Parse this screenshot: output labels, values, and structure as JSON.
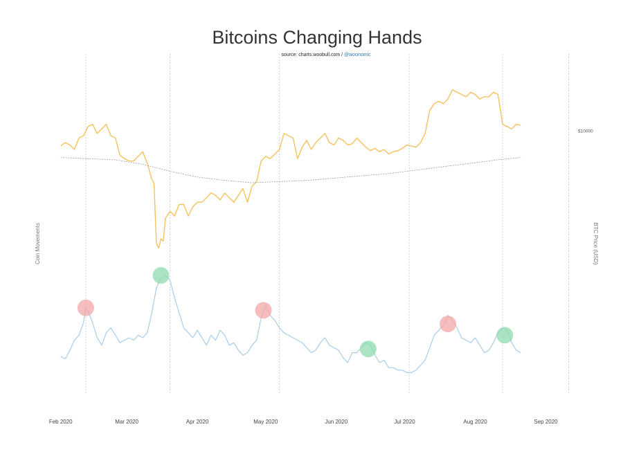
{
  "chart_data": {
    "type": "line",
    "title": "Bitcoins Changing Hands",
    "source_prefix": "source: charts.woobull.com / ",
    "source_handle": "@woonomic",
    "ylabel_left": "Coin Movements",
    "ylabel_right": "BTC Price (USD)",
    "price_tick_label": "$10000",
    "x_ticks": [
      "Feb 2020",
      "Mar 2020",
      "Apr 2020",
      "May 2020",
      "Jun 2020",
      "Jul 2020",
      "Aug 2020",
      "Sep 2020"
    ],
    "x_range": [
      -6,
      225
    ],
    "price_range": [
      4400,
      12400
    ],
    "price_tick_value": 10000,
    "movement_range": [
      0,
      100
    ],
    "event_days": [
      11,
      48,
      96,
      153,
      194,
      223
    ],
    "colors": {
      "price": "#f5c25d",
      "price_ma": "#999999",
      "movement": "#a8cdea",
      "sell_marker": "#f4a6a6",
      "buy_marker": "#8fdbae",
      "event_line": "#c8c8c8"
    },
    "series": [
      {
        "name": "BTC Price",
        "points": [
          [
            0,
            9350
          ],
          [
            2,
            9500
          ],
          [
            4,
            9400
          ],
          [
            6,
            9200
          ],
          [
            8,
            9700
          ],
          [
            10,
            9800
          ],
          [
            12,
            10200
          ],
          [
            14,
            10300
          ],
          [
            16,
            9900
          ],
          [
            18,
            10100
          ],
          [
            20,
            10300
          ],
          [
            22,
            9800
          ],
          [
            24,
            9700
          ],
          [
            26,
            8950
          ],
          [
            28,
            8800
          ],
          [
            30,
            8700
          ],
          [
            32,
            8700
          ],
          [
            34,
            8900
          ],
          [
            36,
            9100
          ],
          [
            38,
            8600
          ],
          [
            40,
            7900
          ],
          [
            41,
            7700
          ],
          [
            42,
            5100
          ],
          [
            43,
            4900
          ],
          [
            44,
            5300
          ],
          [
            45,
            5200
          ],
          [
            46,
            6200
          ],
          [
            48,
            6500
          ],
          [
            50,
            6300
          ],
          [
            52,
            6800
          ],
          [
            54,
            6800
          ],
          [
            56,
            6300
          ],
          [
            58,
            6700
          ],
          [
            60,
            6900
          ],
          [
            62,
            6900
          ],
          [
            64,
            7100
          ],
          [
            66,
            7300
          ],
          [
            68,
            7200
          ],
          [
            70,
            7000
          ],
          [
            72,
            7300
          ],
          [
            74,
            7100
          ],
          [
            76,
            6900
          ],
          [
            78,
            7200
          ],
          [
            80,
            7500
          ],
          [
            82,
            6900
          ],
          [
            84,
            7600
          ],
          [
            86,
            7800
          ],
          [
            88,
            8700
          ],
          [
            90,
            8900
          ],
          [
            92,
            8800
          ],
          [
            94,
            9000
          ],
          [
            96,
            9200
          ],
          [
            98,
            9900
          ],
          [
            100,
            9800
          ],
          [
            102,
            9700
          ],
          [
            104,
            8800
          ],
          [
            106,
            9300
          ],
          [
            108,
            9600
          ],
          [
            110,
            9200
          ],
          [
            112,
            9500
          ],
          [
            114,
            9700
          ],
          [
            116,
            9900
          ],
          [
            118,
            9500
          ],
          [
            120,
            9400
          ],
          [
            122,
            9700
          ],
          [
            124,
            9600
          ],
          [
            126,
            9400
          ],
          [
            128,
            9450
          ],
          [
            130,
            9700
          ],
          [
            132,
            9500
          ],
          [
            134,
            9300
          ],
          [
            136,
            9150
          ],
          [
            138,
            9250
          ],
          [
            140,
            9100
          ],
          [
            142,
            9200
          ],
          [
            144,
            9000
          ],
          [
            146,
            9100
          ],
          [
            148,
            9150
          ],
          [
            150,
            9250
          ],
          [
            152,
            9400
          ],
          [
            154,
            9350
          ],
          [
            156,
            9300
          ],
          [
            158,
            9500
          ],
          [
            160,
            9900
          ],
          [
            162,
            10900
          ],
          [
            164,
            11200
          ],
          [
            166,
            11300
          ],
          [
            168,
            11200
          ],
          [
            170,
            11400
          ],
          [
            172,
            11800
          ],
          [
            174,
            11700
          ],
          [
            176,
            11600
          ],
          [
            178,
            11500
          ],
          [
            180,
            11700
          ],
          [
            182,
            11600
          ],
          [
            184,
            11400
          ],
          [
            186,
            11500
          ],
          [
            188,
            11500
          ],
          [
            190,
            11700
          ],
          [
            192,
            11600
          ],
          [
            194,
            10300
          ],
          [
            196,
            10200
          ],
          [
            198,
            10100
          ],
          [
            200,
            10300
          ],
          [
            202,
            10250
          ]
        ]
      },
      {
        "name": "Price MA",
        "points": [
          [
            0,
            8850
          ],
          [
            12,
            8800
          ],
          [
            24,
            8750
          ],
          [
            36,
            8550
          ],
          [
            48,
            8250
          ],
          [
            60,
            8000
          ],
          [
            72,
            7850
          ],
          [
            84,
            7750
          ],
          [
            96,
            7800
          ],
          [
            108,
            7850
          ],
          [
            120,
            7950
          ],
          [
            132,
            8050
          ],
          [
            144,
            8150
          ],
          [
            156,
            8300
          ],
          [
            168,
            8450
          ],
          [
            180,
            8600
          ],
          [
            192,
            8750
          ],
          [
            202,
            8850
          ]
        ]
      },
      {
        "name": "Coin Movements",
        "points": [
          [
            0,
            25
          ],
          [
            2,
            23
          ],
          [
            4,
            30
          ],
          [
            6,
            38
          ],
          [
            8,
            42
          ],
          [
            10,
            52
          ],
          [
            11,
            64
          ],
          [
            12,
            62
          ],
          [
            14,
            52
          ],
          [
            16,
            40
          ],
          [
            18,
            34
          ],
          [
            20,
            44
          ],
          [
            22,
            48
          ],
          [
            24,
            42
          ],
          [
            26,
            36
          ],
          [
            28,
            38
          ],
          [
            30,
            40
          ],
          [
            32,
            38
          ],
          [
            34,
            42
          ],
          [
            36,
            40
          ],
          [
            38,
            44
          ],
          [
            40,
            60
          ],
          [
            42,
            80
          ],
          [
            44,
            88
          ],
          [
            46,
            90
          ],
          [
            48,
            86
          ],
          [
            50,
            72
          ],
          [
            52,
            60
          ],
          [
            54,
            48
          ],
          [
            56,
            44
          ],
          [
            58,
            40
          ],
          [
            60,
            46
          ],
          [
            62,
            40
          ],
          [
            64,
            34
          ],
          [
            66,
            42
          ],
          [
            68,
            38
          ],
          [
            70,
            46
          ],
          [
            72,
            42
          ],
          [
            74,
            34
          ],
          [
            76,
            36
          ],
          [
            78,
            30
          ],
          [
            80,
            26
          ],
          [
            82,
            28
          ],
          [
            84,
            34
          ],
          [
            86,
            38
          ],
          [
            88,
            56
          ],
          [
            90,
            66
          ],
          [
            92,
            58
          ],
          [
            94,
            54
          ],
          [
            96,
            48
          ],
          [
            98,
            44
          ],
          [
            100,
            42
          ],
          [
            102,
            40
          ],
          [
            104,
            38
          ],
          [
            106,
            36
          ],
          [
            108,
            32
          ],
          [
            110,
            28
          ],
          [
            112,
            30
          ],
          [
            114,
            36
          ],
          [
            116,
            40
          ],
          [
            118,
            34
          ],
          [
            120,
            32
          ],
          [
            122,
            30
          ],
          [
            124,
            24
          ],
          [
            126,
            20
          ],
          [
            128,
            28
          ],
          [
            130,
            28
          ],
          [
            132,
            32
          ],
          [
            134,
            36
          ],
          [
            136,
            34
          ],
          [
            138,
            26
          ],
          [
            140,
            20
          ],
          [
            142,
            22
          ],
          [
            144,
            16
          ],
          [
            146,
            16
          ],
          [
            148,
            14
          ],
          [
            150,
            14
          ],
          [
            152,
            12
          ],
          [
            154,
            12
          ],
          [
            156,
            14
          ],
          [
            158,
            18
          ],
          [
            160,
            22
          ],
          [
            162,
            32
          ],
          [
            164,
            42
          ],
          [
            166,
            46
          ],
          [
            168,
            50
          ],
          [
            170,
            58
          ],
          [
            172,
            54
          ],
          [
            174,
            48
          ],
          [
            176,
            40
          ],
          [
            178,
            38
          ],
          [
            180,
            36
          ],
          [
            182,
            40
          ],
          [
            184,
            34
          ],
          [
            186,
            28
          ],
          [
            188,
            30
          ],
          [
            190,
            36
          ],
          [
            192,
            44
          ],
          [
            194,
            48
          ],
          [
            196,
            46
          ],
          [
            198,
            36
          ],
          [
            200,
            30
          ],
          [
            202,
            28
          ]
        ]
      }
    ],
    "markers": [
      {
        "x": 11,
        "y": 64,
        "kind": "sell"
      },
      {
        "x": 44,
        "y": 90,
        "kind": "buy"
      },
      {
        "x": 89,
        "y": 62,
        "kind": "sell"
      },
      {
        "x": 135,
        "y": 31,
        "kind": "buy"
      },
      {
        "x": 170,
        "y": 51,
        "kind": "sell"
      },
      {
        "x": 195,
        "y": 42,
        "kind": "buy"
      }
    ]
  }
}
